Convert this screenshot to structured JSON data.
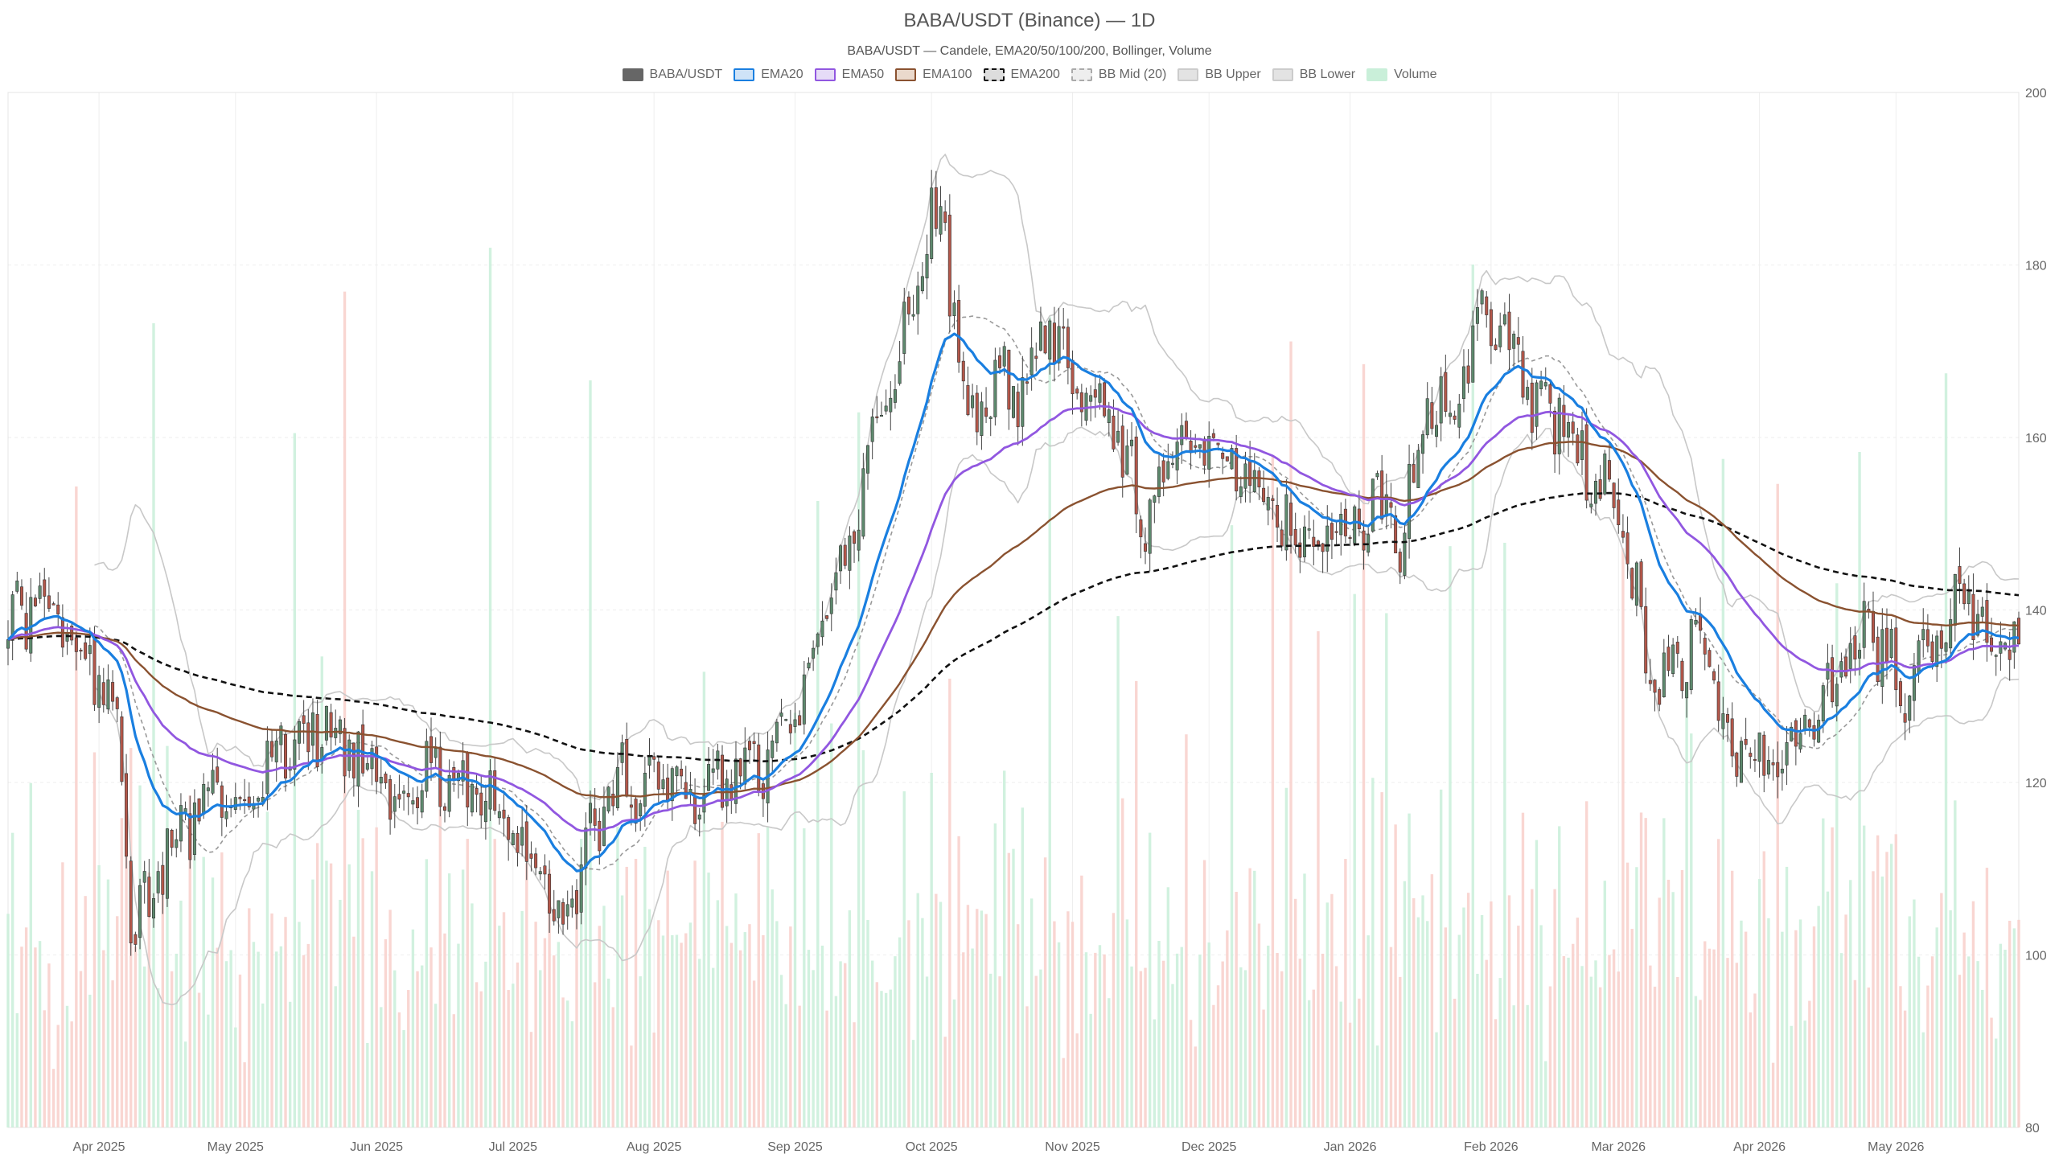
{
  "header": {
    "title": "BABA/USDT (Binance) — 1D",
    "subtitle": "BABA/USDT — Candele, EMA20/50/100/200, Bollinger, Volume"
  },
  "legend": [
    {
      "label": "BABA/USDT",
      "fill": "#666666",
      "stroke": "#666666",
      "dashed": false
    },
    {
      "label": "EMA20",
      "fill": "#cfe3f7",
      "stroke": "#1a7fe0",
      "dashed": false
    },
    {
      "label": "EMA50",
      "fill": "#e6dcf7",
      "stroke": "#9157e0",
      "dashed": false
    },
    {
      "label": "EMA100",
      "fill": "#ead9cc",
      "stroke": "#8a5230",
      "dashed": false
    },
    {
      "label": "EMA200",
      "fill": "#dddddd",
      "stroke": "#111111",
      "dashed": true
    },
    {
      "label": "BB Mid (20)",
      "fill": "#eeeeee",
      "stroke": "#aaaaaa",
      "dashed": true
    },
    {
      "label": "BB Upper",
      "fill": "#e3e3e3",
      "stroke": "#cccccc",
      "dashed": false
    },
    {
      "label": "BB Lower",
      "fill": "#e3e3e3",
      "stroke": "#cccccc",
      "dashed": false
    },
    {
      "label": "Volume",
      "fill": "#c9efd9",
      "stroke": "#c9efd9",
      "dashed": false
    }
  ],
  "colors": {
    "up": "#5e8a6e",
    "down": "#b4574a",
    "volume_up": "#c9efd9",
    "volume_down": "#f8cfca",
    "ema20": "#1a7fe0",
    "ema50": "#9157e0",
    "ema100": "#8a5230",
    "ema200": "#111111",
    "bb_mid": "#999999",
    "bb_band": "#c8c8c8",
    "grid": "#eeeeee",
    "axis_text": "#666666"
  },
  "chart_data": {
    "type": "candlestick",
    "title": "BABA/USDT (Binance) — 1D",
    "subtitle": "BABA/USDT — Candele, EMA20/50/100/200, Bollinger, Volume",
    "ylim": [
      80,
      200
    ],
    "y_ticks": [
      80,
      100,
      120,
      140,
      160,
      180,
      200
    ],
    "y_axis_side": "right",
    "x_range": [
      "2025-03-12",
      "2026-05-28"
    ],
    "x_ticks": [
      {
        "date": "2025-04-01",
        "label": "Apr 2025"
      },
      {
        "date": "2025-05-01",
        "label": "May 2025"
      },
      {
        "date": "2025-06-01",
        "label": "Jun 2025"
      },
      {
        "date": "2025-07-01",
        "label": "Jul 2025"
      },
      {
        "date": "2025-08-01",
        "label": "Aug 2025"
      },
      {
        "date": "2025-09-01",
        "label": "Sep 2025"
      },
      {
        "date": "2025-10-01",
        "label": "Oct 2025"
      },
      {
        "date": "2025-11-01",
        "label": "Nov 2025"
      },
      {
        "date": "2025-12-01",
        "label": "Dec 2025"
      },
      {
        "date": "2026-01-01",
        "label": "Jan 2026"
      },
      {
        "date": "2026-02-01",
        "label": "Feb 2026"
      },
      {
        "date": "2026-03-01",
        "label": "Mar 2026"
      },
      {
        "date": "2026-04-01",
        "label": "Apr 2026"
      },
      {
        "date": "2026-05-01",
        "label": "May 2026"
      }
    ],
    "grid": true,
    "legend_position": "top-center",
    "price_anchors": [
      [
        "2025-03-12",
        138
      ],
      [
        "2025-03-18",
        140
      ],
      [
        "2025-03-25",
        137
      ],
      [
        "2025-04-01",
        133
      ],
      [
        "2025-04-05",
        128
      ],
      [
        "2025-04-08",
        104
      ],
      [
        "2025-04-12",
        106
      ],
      [
        "2025-04-16",
        113
      ],
      [
        "2025-04-22",
        116
      ],
      [
        "2025-04-28",
        119
      ],
      [
        "2025-05-05",
        120
      ],
      [
        "2025-05-12",
        125
      ],
      [
        "2025-05-16",
        126
      ],
      [
        "2025-05-22",
        125
      ],
      [
        "2025-05-28",
        123
      ],
      [
        "2025-06-05",
        118
      ],
      [
        "2025-06-12",
        121
      ],
      [
        "2025-06-20",
        118
      ],
      [
        "2025-06-28",
        116
      ],
      [
        "2025-07-05",
        112
      ],
      [
        "2025-07-10",
        106
      ],
      [
        "2025-07-15",
        108
      ],
      [
        "2025-07-20",
        116
      ],
      [
        "2025-07-25",
        120
      ],
      [
        "2025-08-01",
        120
      ],
      [
        "2025-08-10",
        118
      ],
      [
        "2025-08-20",
        121
      ],
      [
        "2025-08-28",
        123
      ],
      [
        "2025-09-02",
        130
      ],
      [
        "2025-09-06",
        137
      ],
      [
        "2025-09-12",
        145
      ],
      [
        "2025-09-16",
        155
      ],
      [
        "2025-09-22",
        165
      ],
      [
        "2025-09-27",
        175
      ],
      [
        "2025-10-01",
        185
      ],
      [
        "2025-10-04",
        183
      ],
      [
        "2025-10-08",
        165
      ],
      [
        "2025-10-12",
        162
      ],
      [
        "2025-10-16",
        168
      ],
      [
        "2025-10-20",
        165
      ],
      [
        "2025-10-25",
        173
      ],
      [
        "2025-10-30",
        170
      ],
      [
        "2025-11-05",
        165
      ],
      [
        "2025-11-12",
        158
      ],
      [
        "2025-11-18",
        150
      ],
      [
        "2025-11-24",
        160
      ],
      [
        "2025-12-02",
        158
      ],
      [
        "2025-12-10",
        157
      ],
      [
        "2025-12-16",
        150
      ],
      [
        "2025-12-23",
        148
      ],
      [
        "2025-12-30",
        148
      ],
      [
        "2026-01-06",
        153
      ],
      [
        "2026-01-12",
        148
      ],
      [
        "2026-01-18",
        165
      ],
      [
        "2026-01-24",
        163
      ],
      [
        "2026-01-31",
        175
      ],
      [
        "2026-02-05",
        172
      ],
      [
        "2026-02-10",
        162
      ],
      [
        "2026-02-16",
        163
      ],
      [
        "2026-02-22",
        157
      ],
      [
        "2026-03-01",
        152
      ],
      [
        "2026-03-06",
        138
      ],
      [
        "2026-03-10",
        130
      ],
      [
        "2026-03-14",
        135
      ],
      [
        "2026-03-20",
        136
      ],
      [
        "2026-03-25",
        124
      ],
      [
        "2026-04-01",
        122
      ],
      [
        "2026-04-06",
        121
      ],
      [
        "2026-04-12",
        126
      ],
      [
        "2026-04-18",
        132
      ],
      [
        "2026-04-24",
        138
      ],
      [
        "2026-04-30",
        133
      ],
      [
        "2026-05-05",
        131
      ],
      [
        "2026-05-10",
        136
      ],
      [
        "2026-05-16",
        142
      ],
      [
        "2026-05-20",
        138
      ],
      [
        "2026-05-26",
        135
      ]
    ]
  }
}
